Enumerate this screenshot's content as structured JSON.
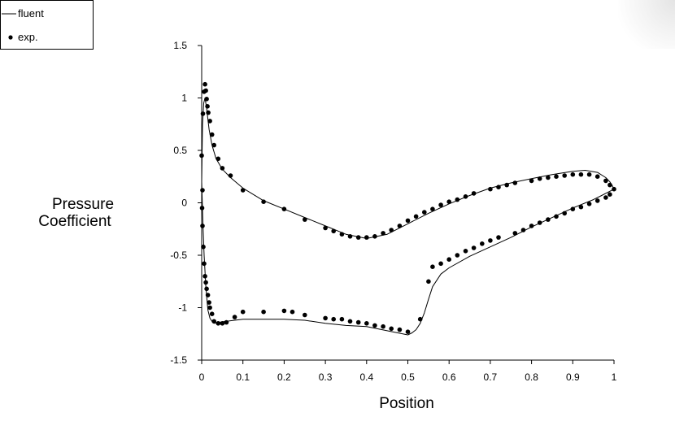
{
  "chart_data": {
    "type": "line",
    "xlabel": "Position",
    "ylabel": "Pressure Coefficient",
    "xlim": [
      0,
      1
    ],
    "ylim": [
      -1.5,
      1.5
    ],
    "x_ticks": [
      "0",
      "0.1",
      "0.2",
      "0.3",
      "0.4",
      "0.5",
      "0.6",
      "0.7",
      "0.8",
      "0.9",
      "1"
    ],
    "y_ticks": [
      "1.5",
      "1",
      "0.5",
      "0",
      "-0.5",
      "-1",
      "-1.5"
    ],
    "grid": false,
    "legend_position": "top-left",
    "series": [
      {
        "name": "fluent",
        "style": "line",
        "color": "#000000",
        "x": [
          0.0,
          0.002,
          0.005,
          0.008,
          0.012,
          0.018,
          0.025,
          0.035,
          0.05,
          0.07,
          0.1,
          0.15,
          0.2,
          0.25,
          0.3,
          0.35,
          0.4,
          0.45,
          0.5,
          0.55,
          0.6,
          0.65,
          0.7,
          0.75,
          0.8,
          0.85,
          0.9,
          0.93,
          0.96,
          0.98,
          0.99,
          0.995,
          1.0,
          0.995,
          0.985,
          0.97,
          0.95,
          0.9,
          0.85,
          0.8,
          0.75,
          0.7,
          0.65,
          0.6,
          0.58,
          0.56,
          0.55,
          0.54,
          0.53,
          0.52,
          0.51,
          0.5,
          0.45,
          0.4,
          0.35,
          0.3,
          0.25,
          0.2,
          0.15,
          0.1,
          0.06,
          0.04,
          0.03,
          0.025,
          0.02,
          0.015,
          0.01,
          0.006,
          0.003,
          0.0
        ],
        "y": [
          0.2,
          0.75,
          0.95,
          1.0,
          0.9,
          0.7,
          0.55,
          0.42,
          0.32,
          0.24,
          0.14,
          0.02,
          -0.06,
          -0.14,
          -0.22,
          -0.3,
          -0.34,
          -0.3,
          -0.2,
          -0.1,
          -0.01,
          0.07,
          0.14,
          0.19,
          0.23,
          0.27,
          0.3,
          0.31,
          0.29,
          0.24,
          0.2,
          0.17,
          0.13,
          0.12,
          0.1,
          0.07,
          0.03,
          -0.05,
          -0.14,
          -0.23,
          -0.33,
          -0.42,
          -0.51,
          -0.62,
          -0.68,
          -0.8,
          -0.92,
          -1.05,
          -1.15,
          -1.21,
          -1.24,
          -1.26,
          -1.22,
          -1.18,
          -1.17,
          -1.15,
          -1.12,
          -1.11,
          -1.11,
          -1.11,
          -1.13,
          -1.14,
          -1.15,
          -1.13,
          -1.1,
          -1.02,
          -0.8,
          -0.5,
          -0.2,
          0.2
        ]
      },
      {
        "name": "exp.",
        "style": "marker",
        "color": "#000000",
        "x": [
          0.0,
          0.003,
          0.006,
          0.008,
          0.01,
          0.012,
          0.014,
          0.016,
          0.02,
          0.025,
          0.03,
          0.04,
          0.05,
          0.07,
          0.1,
          0.15,
          0.2,
          0.25,
          0.3,
          0.32,
          0.34,
          0.36,
          0.38,
          0.4,
          0.42,
          0.44,
          0.46,
          0.48,
          0.5,
          0.52,
          0.54,
          0.56,
          0.58,
          0.6,
          0.62,
          0.64,
          0.66,
          0.7,
          0.72,
          0.74,
          0.76,
          0.8,
          0.82,
          0.84,
          0.86,
          0.88,
          0.9,
          0.92,
          0.94,
          0.96,
          0.98,
          0.99,
          1.0,
          0.99,
          0.98,
          0.96,
          0.94,
          0.92,
          0.9,
          0.88,
          0.86,
          0.84,
          0.82,
          0.8,
          0.78,
          0.76,
          0.72,
          0.7,
          0.68,
          0.66,
          0.64,
          0.62,
          0.6,
          0.58,
          0.56,
          0.55,
          0.53,
          0.5,
          0.48,
          0.46,
          0.44,
          0.42,
          0.4,
          0.38,
          0.36,
          0.34,
          0.32,
          0.3,
          0.25,
          0.22,
          0.2,
          0.15,
          0.1,
          0.08,
          0.06,
          0.05,
          0.04,
          0.03,
          0.025,
          0.02,
          0.018,
          0.015,
          0.012,
          0.01,
          0.008,
          0.006,
          0.004,
          0.002,
          0.001,
          0.002
        ],
        "y": [
          0.45,
          0.85,
          1.06,
          1.13,
          1.07,
          0.99,
          0.92,
          0.86,
          0.78,
          0.65,
          0.55,
          0.42,
          0.33,
          0.26,
          0.12,
          0.01,
          -0.06,
          -0.16,
          -0.24,
          -0.27,
          -0.3,
          -0.32,
          -0.33,
          -0.33,
          -0.32,
          -0.29,
          -0.26,
          -0.22,
          -0.17,
          -0.13,
          -0.09,
          -0.06,
          -0.02,
          0.01,
          0.03,
          0.06,
          0.09,
          0.13,
          0.15,
          0.17,
          0.19,
          0.21,
          0.23,
          0.24,
          0.25,
          0.26,
          0.27,
          0.27,
          0.27,
          0.25,
          0.21,
          0.17,
          0.13,
          0.08,
          0.05,
          0.02,
          -0.01,
          -0.04,
          -0.06,
          -0.1,
          -0.13,
          -0.16,
          -0.19,
          -0.22,
          -0.26,
          -0.29,
          -0.33,
          -0.36,
          -0.39,
          -0.43,
          -0.46,
          -0.5,
          -0.54,
          -0.58,
          -0.61,
          -0.75,
          -1.11,
          -1.23,
          -1.21,
          -1.2,
          -1.18,
          -1.17,
          -1.15,
          -1.14,
          -1.13,
          -1.11,
          -1.11,
          -1.1,
          -1.07,
          -1.04,
          -1.03,
          -1.04,
          -1.04,
          -1.09,
          -1.14,
          -1.15,
          -1.15,
          -1.13,
          -1.06,
          -1.0,
          -0.95,
          -0.88,
          -0.82,
          -0.76,
          -0.7,
          -0.58,
          -0.42,
          -0.22,
          -0.05,
          0.12
        ]
      }
    ]
  },
  "legend": {
    "items": [
      {
        "label": "fluent",
        "symbol": "line"
      },
      {
        "label": "exp.",
        "symbol": "dot"
      }
    ]
  }
}
